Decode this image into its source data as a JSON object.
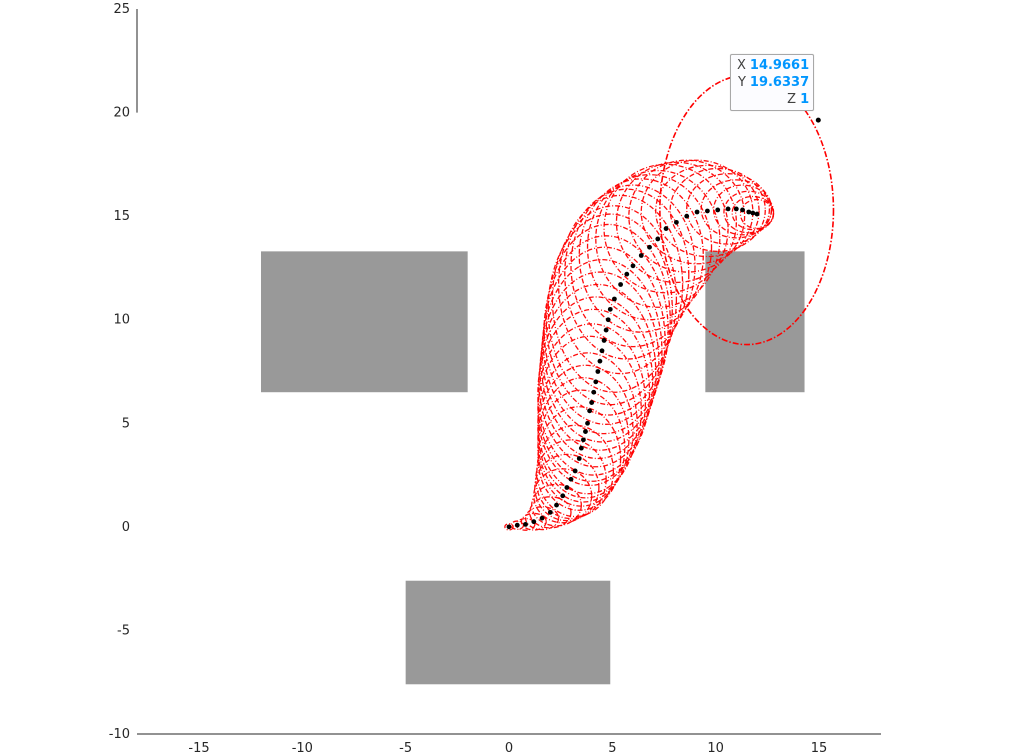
{
  "chart_data": {
    "type": "line",
    "xlim": [
      -18,
      18
    ],
    "ylim": [
      -10,
      25
    ],
    "xticks": [
      -15,
      -10,
      -5,
      0,
      5,
      10,
      15
    ],
    "yticks": [
      -10,
      -5,
      0,
      5,
      10,
      15,
      20,
      25
    ],
    "xtick_labels": [
      "-15",
      "-10",
      "-5",
      "0",
      "5",
      "10",
      "15"
    ],
    "ytick_labels": [
      "-10",
      "-5",
      "0",
      "5",
      "10",
      "15",
      "20",
      "25"
    ],
    "grid": false,
    "obstacles": [
      {
        "x": [
          -12.0,
          -2.0
        ],
        "y": [
          6.5,
          13.3
        ],
        "color": "#999999"
      },
      {
        "x": [
          9.5,
          14.3
        ],
        "y": [
          6.5,
          13.3
        ],
        "color": "#999999"
      },
      {
        "x": [
          -5.0,
          4.9
        ],
        "y": [
          -7.6,
          -2.6
        ],
        "color": "#999999"
      }
    ],
    "path_centers": [
      [
        0.0,
        0.0
      ],
      [
        0.4,
        0.08
      ],
      [
        0.8,
        0.12
      ],
      [
        1.2,
        0.25
      ],
      [
        1.6,
        0.42
      ],
      [
        2.0,
        0.7
      ],
      [
        2.3,
        1.05
      ],
      [
        2.6,
        1.5
      ],
      [
        2.8,
        1.9
      ],
      [
        3.0,
        2.3
      ],
      [
        3.2,
        2.7
      ],
      [
        3.4,
        3.3
      ],
      [
        3.5,
        3.8
      ],
      [
        3.6,
        4.2
      ],
      [
        3.7,
        4.6
      ],
      [
        3.8,
        5.0
      ],
      [
        3.9,
        5.6
      ],
      [
        4.0,
        6.0
      ],
      [
        4.1,
        6.5
      ],
      [
        4.2,
        7.0
      ],
      [
        4.3,
        7.5
      ],
      [
        4.4,
        8.0
      ],
      [
        4.5,
        8.5
      ],
      [
        4.6,
        9.0
      ],
      [
        4.7,
        9.5
      ],
      [
        4.8,
        10.0
      ],
      [
        4.9,
        10.5
      ],
      [
        5.1,
        11.0
      ],
      [
        5.4,
        11.7
      ],
      [
        5.7,
        12.2
      ],
      [
        6.0,
        12.6
      ],
      [
        6.4,
        13.1
      ],
      [
        6.8,
        13.5
      ],
      [
        7.2,
        13.9
      ],
      [
        7.6,
        14.4
      ],
      [
        8.1,
        14.7
      ],
      [
        8.6,
        15.0
      ],
      [
        9.1,
        15.2
      ],
      [
        9.6,
        15.25
      ],
      [
        10.1,
        15.3
      ],
      [
        10.6,
        15.35
      ],
      [
        11.0,
        15.35
      ],
      [
        11.3,
        15.3
      ],
      [
        11.6,
        15.2
      ],
      [
        11.8,
        15.15
      ],
      [
        12.0,
        15.1
      ]
    ],
    "ellipse_radii": [
      [
        0.2,
        0.15
      ],
      [
        0.3,
        0.2
      ],
      [
        0.45,
        0.28
      ],
      [
        0.6,
        0.4
      ],
      [
        0.8,
        0.55
      ],
      [
        1.0,
        0.75
      ],
      [
        1.2,
        1.0
      ],
      [
        1.4,
        1.3
      ],
      [
        1.55,
        1.6
      ],
      [
        1.7,
        1.9
      ],
      [
        1.85,
        2.2
      ],
      [
        2.0,
        2.5
      ],
      [
        2.1,
        2.8
      ],
      [
        2.2,
        3.0
      ],
      [
        2.3,
        3.2
      ],
      [
        2.4,
        3.4
      ],
      [
        2.5,
        3.6
      ],
      [
        2.6,
        3.8
      ],
      [
        2.7,
        4.0
      ],
      [
        2.75,
        4.1
      ],
      [
        2.8,
        4.2
      ],
      [
        2.85,
        4.3
      ],
      [
        2.9,
        4.4
      ],
      [
        2.95,
        4.5
      ],
      [
        3.0,
        4.55
      ],
      [
        3.0,
        4.6
      ],
      [
        3.0,
        4.6
      ],
      [
        3.0,
        4.5
      ],
      [
        3.0,
        4.3
      ],
      [
        3.0,
        4.1
      ],
      [
        3.0,
        3.9
      ],
      [
        3.0,
        3.7
      ],
      [
        3.0,
        3.5
      ],
      [
        3.0,
        3.3
      ],
      [
        3.0,
        3.1
      ],
      [
        2.9,
        2.9
      ],
      [
        2.8,
        2.7
      ],
      [
        2.7,
        2.5
      ],
      [
        2.5,
        2.2
      ],
      [
        2.3,
        2.0
      ],
      [
        2.0,
        1.7
      ],
      [
        1.7,
        1.4
      ],
      [
        1.4,
        1.2
      ],
      [
        1.2,
        1.0
      ],
      [
        1.0,
        0.8
      ],
      [
        0.8,
        0.7
      ]
    ],
    "final_ellipse": {
      "cx": 11.5,
      "cy": 15.3,
      "rx": 4.2,
      "ry": 6.5
    },
    "series_color": "#ff0000",
    "center_color": "#000000",
    "datatip": {
      "point": [
        14.9661,
        19.6337
      ],
      "x_label": "X",
      "x_value": "14.9661",
      "y_label": "Y",
      "y_value": "19.6337",
      "z_label": "Z",
      "z_value": "1"
    }
  }
}
